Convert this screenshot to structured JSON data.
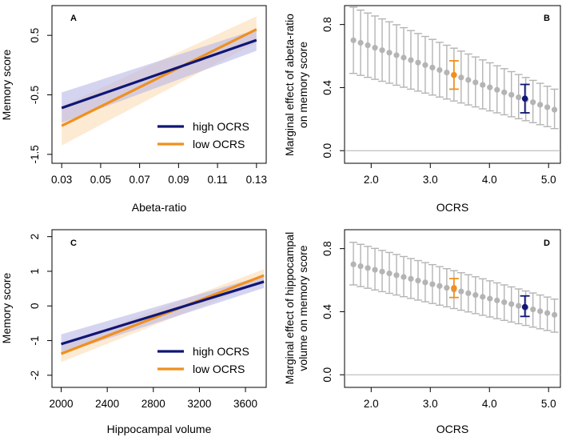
{
  "chart_data": [
    {
      "panel": "A",
      "type": "line",
      "xlabel": "Abeta-ratio",
      "ylabel": "Memory score",
      "xlim": [
        0.025,
        0.135
      ],
      "ylim": [
        -1.65,
        1.0
      ],
      "xticks": [
        "0.03",
        "0.05",
        "0.07",
        "0.09",
        "0.11",
        "0.13"
      ],
      "xtick_values": [
        0.03,
        0.05,
        0.07,
        0.09,
        0.11,
        0.13
      ],
      "yticks": [
        "-1.5",
        "-0.5",
        "0.5"
      ],
      "ytick_values": [
        -1.5,
        -0.5,
        0.5
      ],
      "legend_position": "bottom-right",
      "series": [
        {
          "name": "high OCRS",
          "color": "#0f1675",
          "band_color": "#b9b8e6",
          "x": [
            0.03,
            0.13
          ],
          "y": [
            -0.72,
            0.42
          ],
          "lower": [
            -0.97,
            0.24
          ],
          "upper": [
            -0.46,
            0.6
          ]
        },
        {
          "name": "low OCRS",
          "color": "#f0901e",
          "band_color": "#fbdcb6",
          "x": [
            0.03,
            0.13
          ],
          "y": [
            -1.02,
            0.6
          ],
          "lower": [
            -1.35,
            0.38
          ],
          "upper": [
            -0.69,
            0.82
          ]
        }
      ]
    },
    {
      "panel": "B",
      "type": "scatter",
      "xlabel": "OCRS",
      "ylabel_lines": [
        "Marginal effect of abeta-ratio",
        "on memory score"
      ],
      "xlim": [
        1.55,
        5.2
      ],
      "ylim": [
        -0.08,
        0.92
      ],
      "xticks": [
        "2.0",
        "3.0",
        "4.0",
        "5.0"
      ],
      "xtick_values": [
        2.0,
        3.0,
        4.0,
        5.0
      ],
      "yticks": [
        "0.0",
        "0.4",
        "0.8"
      ],
      "ytick_values": [
        0.0,
        0.4,
        0.8
      ],
      "reference_line": 0.0,
      "x_start": 1.7,
      "x_end": 5.1,
      "n_points": 29,
      "y_start": 0.7,
      "y_end": 0.26,
      "ci_low_start": 0.49,
      "ci_low_end": 0.14,
      "ci_high_start": 0.91,
      "ci_high_end": 0.39,
      "highlights": [
        {
          "label": "low OCRS",
          "x": 3.4,
          "y": 0.48,
          "lower": 0.39,
          "upper": 0.57,
          "color": "#f0901e"
        },
        {
          "label": "high OCRS",
          "x": 4.6,
          "y": 0.33,
          "lower": 0.24,
          "upper": 0.42,
          "color": "#0f1675"
        }
      ],
      "point_color": "#b4b4b4"
    },
    {
      "panel": "C",
      "type": "line",
      "xlabel": "Hippocampal volume",
      "ylabel": "Memory score",
      "xlim": [
        1920,
        3780
      ],
      "ylim": [
        -2.35,
        2.2
      ],
      "xticks": [
        "2000",
        "2400",
        "2800",
        "3200",
        "3600"
      ],
      "xtick_values": [
        2000,
        2400,
        2800,
        3200,
        3600
      ],
      "yticks": [
        "-2",
        "-1",
        "0",
        "1",
        "2"
      ],
      "ytick_values": [
        -2,
        -1,
        0,
        1,
        2
      ],
      "legend_position": "bottom-right",
      "series": [
        {
          "name": "high OCRS",
          "color": "#0f1675",
          "band_color": "#b9b8e6",
          "x": [
            2000,
            3760
          ],
          "y": [
            -1.1,
            0.7
          ],
          "lower": [
            -1.38,
            0.52
          ],
          "upper": [
            -0.82,
            0.88
          ]
        },
        {
          "name": "low OCRS",
          "color": "#f0901e",
          "band_color": "#fbdcb6",
          "x": [
            2000,
            3760
          ],
          "y": [
            -1.38,
            0.88
          ],
          "lower": [
            -1.62,
            0.7
          ],
          "upper": [
            -1.14,
            1.06
          ]
        }
      ]
    },
    {
      "panel": "D",
      "type": "scatter",
      "xlabel": "OCRS",
      "ylabel_lines": [
        "Marginal effect of hippocampal",
        "volume on memory score"
      ],
      "xlim": [
        1.55,
        5.2
      ],
      "ylim": [
        -0.08,
        0.92
      ],
      "xticks": [
        "2.0",
        "3.0",
        "4.0",
        "5.0"
      ],
      "xtick_values": [
        2.0,
        3.0,
        4.0,
        5.0
      ],
      "yticks": [
        "0.0",
        "0.4",
        "0.8"
      ],
      "ytick_values": [
        0.0,
        0.4,
        0.8
      ],
      "reference_line": 0.0,
      "x_start": 1.7,
      "x_end": 5.1,
      "n_points": 29,
      "y_start": 0.7,
      "y_end": 0.38,
      "ci_low_start": 0.57,
      "ci_low_end": 0.27,
      "ci_high_start": 0.84,
      "ci_high_end": 0.48,
      "highlights": [
        {
          "label": "low OCRS",
          "x": 3.4,
          "y": 0.55,
          "lower": 0.49,
          "upper": 0.61,
          "color": "#f0901e"
        },
        {
          "label": "high OCRS",
          "x": 4.6,
          "y": 0.43,
          "lower": 0.37,
          "upper": 0.5,
          "color": "#0f1675"
        }
      ],
      "point_color": "#b4b4b4"
    }
  ]
}
